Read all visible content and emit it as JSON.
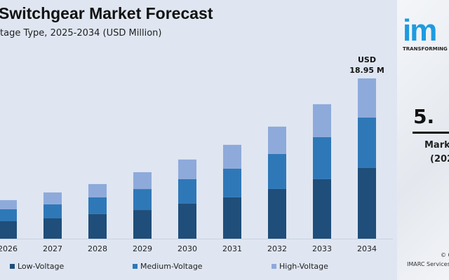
{
  "header": {
    "title": "Switchgear Market Forecast",
    "subtitle": "tage Type, 2025-2034 (USD Million)"
  },
  "chart_data": {
    "type": "bar",
    "stacked": true,
    "categories": [
      "2026",
      "2027",
      "2028",
      "2029",
      "2030",
      "2031",
      "2032",
      "2033",
      "2034"
    ],
    "series": [
      {
        "name": "Low-Voltage",
        "color": "#1f4e7a",
        "values": [
          2.07,
          2.4,
          2.9,
          3.39,
          4.14,
          4.89,
          5.88,
          7.04,
          8.36
        ]
      },
      {
        "name": "Medium-Voltage",
        "color": "#2f78b8",
        "values": [
          1.41,
          1.66,
          1.99,
          2.48,
          2.9,
          3.39,
          4.14,
          4.97,
          5.96
        ]
      },
      {
        "name": "High-Voltage",
        "color": "#8eaadb",
        "values": [
          1.08,
          1.41,
          1.57,
          1.99,
          2.32,
          2.82,
          3.23,
          3.89,
          4.63
        ]
      }
    ],
    "annotation": {
      "line1": "USD",
      "line2": "18.95 M"
    },
    "grid": false,
    "legend": "bottom",
    "ylim": [
      0,
      19
    ]
  },
  "side": {
    "logo": "im",
    "tagline": "TRANSFORMING",
    "cagr": "5.",
    "label": "Mark",
    "years": "(202",
    "copyright": "© C",
    "company": "IMARC Services"
  }
}
